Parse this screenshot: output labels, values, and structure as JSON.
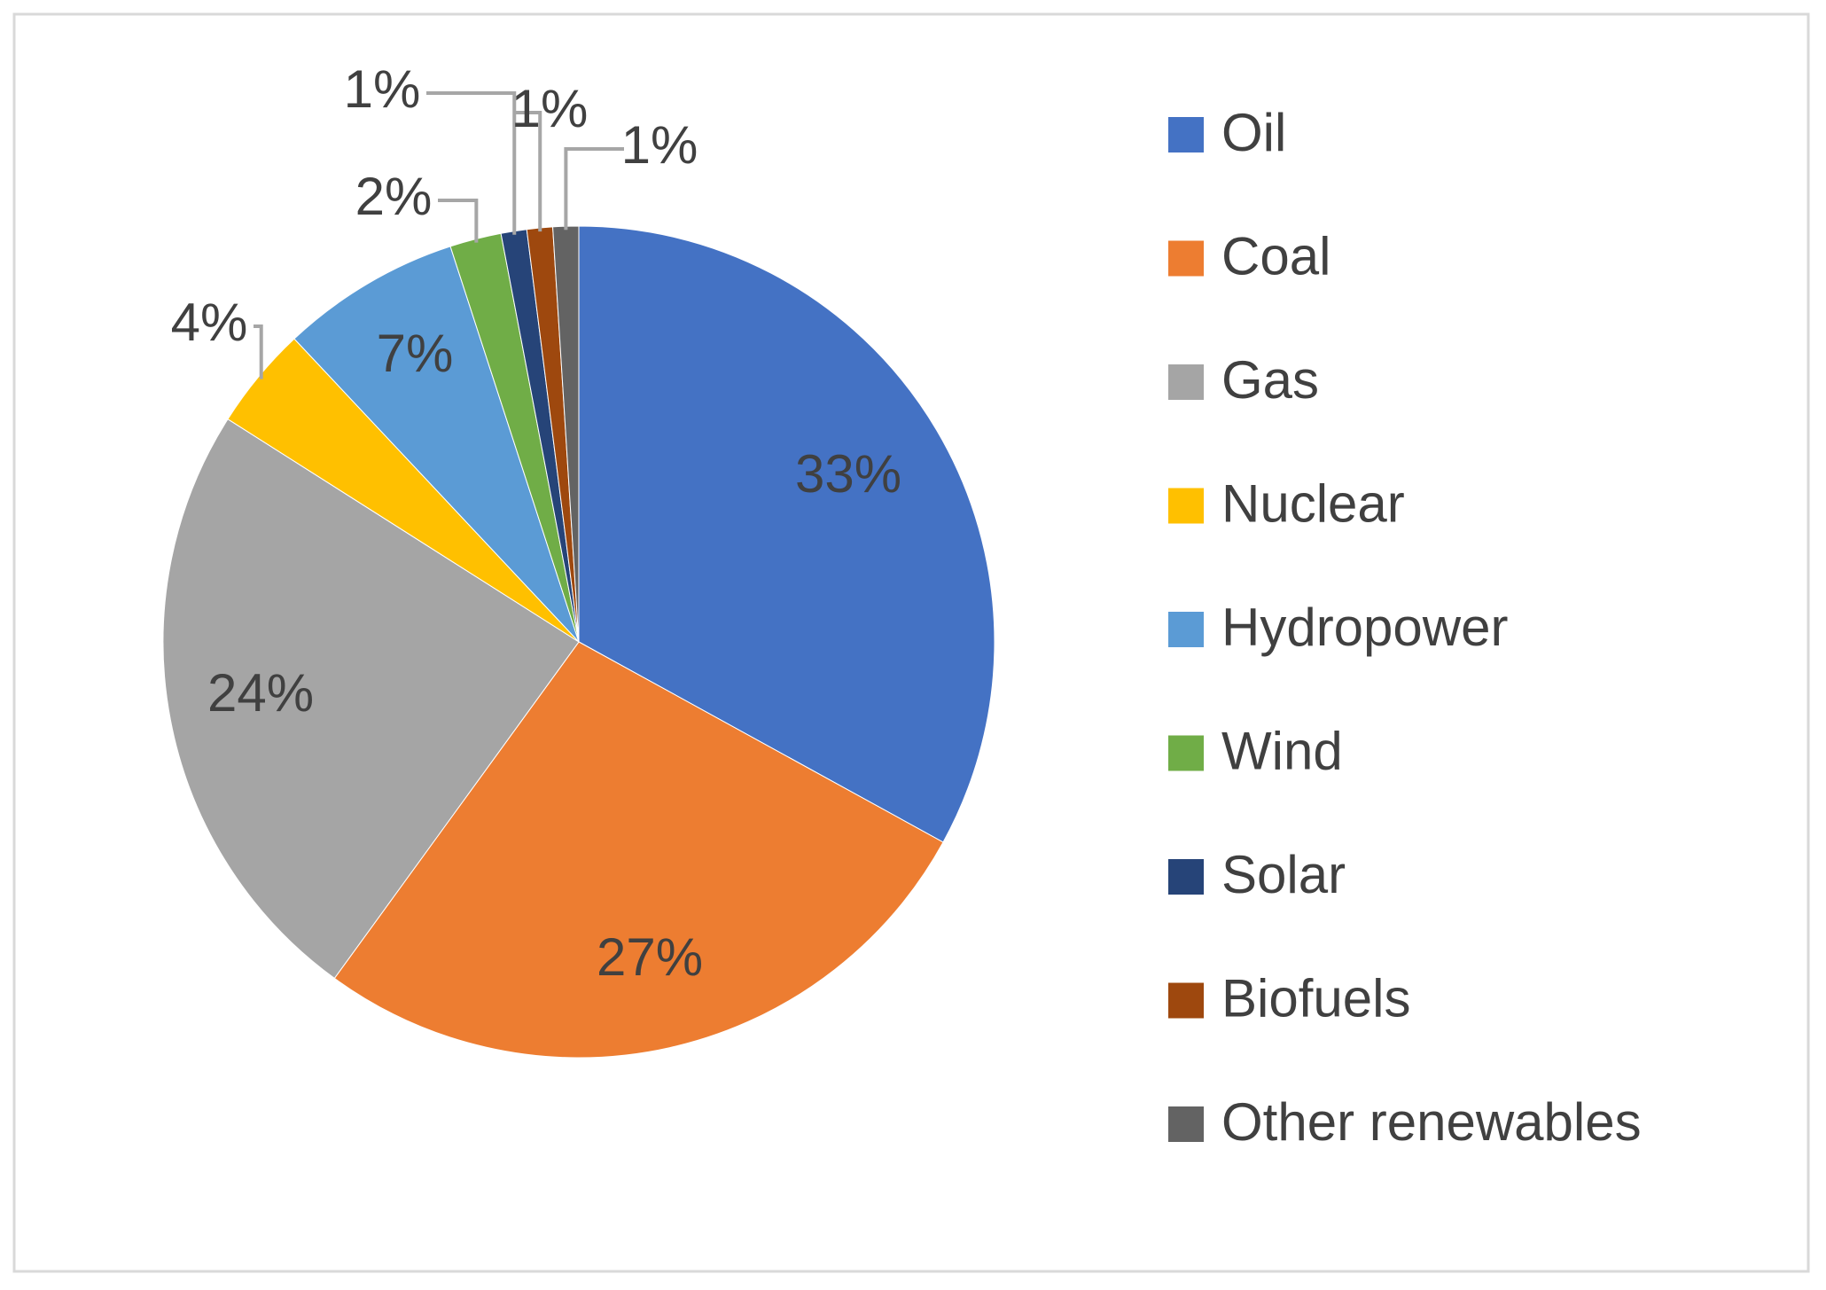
{
  "chart_data": {
    "type": "pie",
    "categories": [
      "Oil",
      "Coal",
      "Gas",
      "Nuclear",
      "Hydropower",
      "Wind",
      "Solar",
      "Biofuels",
      "Other renewables"
    ],
    "values": [
      33,
      27,
      24,
      4,
      7,
      2,
      1,
      1,
      1
    ],
    "value_labels": [
      "33%",
      "27%",
      "24%",
      "4%",
      "7%",
      "2%",
      "1%",
      "1%",
      "1%"
    ],
    "colors": [
      "#4472c4",
      "#ed7d31",
      "#a5a5a5",
      "#ffc000",
      "#5b9bd5",
      "#70ad47",
      "#264478",
      "#9e480e",
      "#636363"
    ],
    "legend": "right"
  }
}
